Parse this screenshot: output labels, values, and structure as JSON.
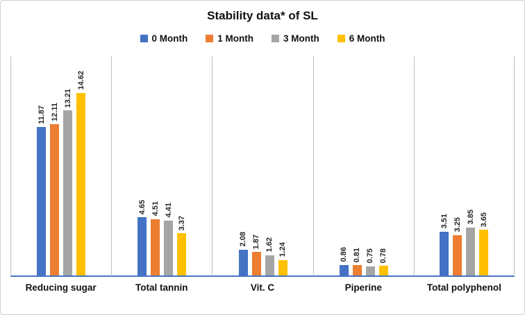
{
  "title": "Stability data* of SL",
  "chart_data": {
    "type": "bar",
    "title": "Stability data* of SL",
    "categories": [
      "Reducing sugar",
      "Total tannin",
      "Vit. C",
      "Piperine",
      "Total polyphenol"
    ],
    "series": [
      {
        "name": "0 Month",
        "color": "#4472C4",
        "values": [
          11.87,
          4.65,
          2.08,
          0.86,
          3.51
        ]
      },
      {
        "name": "1 Month",
        "color": "#ED7D31",
        "values": [
          12.11,
          4.51,
          1.87,
          0.81,
          3.25
        ]
      },
      {
        "name": "3 Month",
        "color": "#A5A5A5",
        "values": [
          13.21,
          4.41,
          1.62,
          0.75,
          3.85
        ]
      },
      {
        "name": "6 Month",
        "color": "#FFC000",
        "values": [
          14.62,
          3.37,
          1.24,
          0.78,
          3.65
        ]
      }
    ],
    "xlabel": "",
    "ylabel": "",
    "ylim": [
      0,
      16
    ],
    "legend_position": "top",
    "data_labels": "rotated-vertical",
    "grid": "vertical-category-separators",
    "axis_color": "#4472C4",
    "separator_color": "#bfbfbf"
  }
}
